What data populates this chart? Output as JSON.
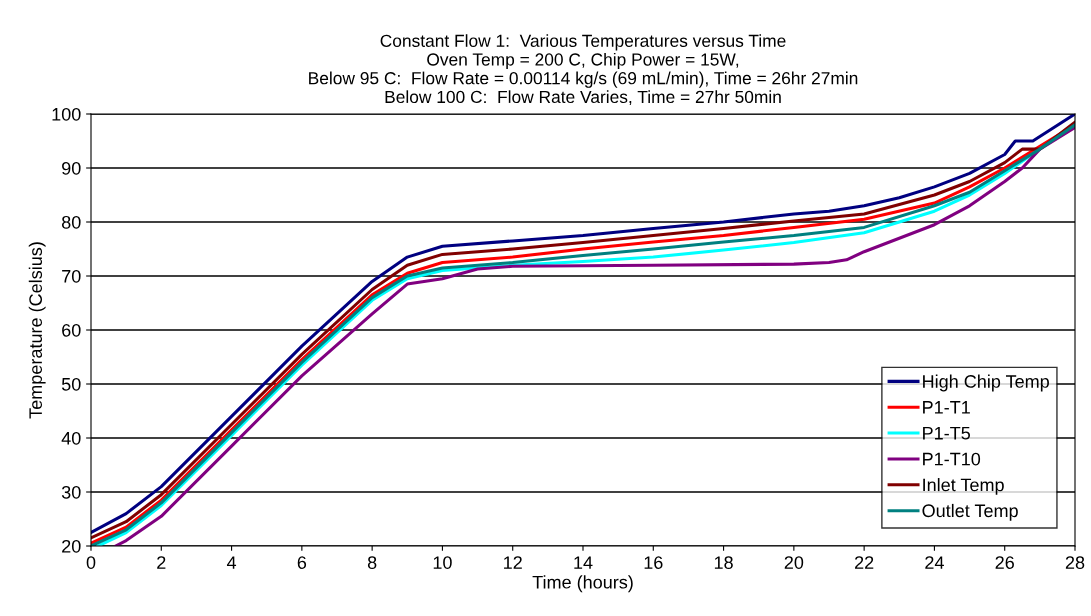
{
  "chart_data": {
    "type": "line",
    "title": "Constant Flow 1:  Various Temperatures versus Time\nOven Temp = 200 C, Chip Power = 15W,\nBelow 95 C:  Flow Rate = 0.00114 kg/s (69 mL/min), Time = 26hr 27min\nBelow 100 C:  Flow Rate Varies, Time = 27hr 50min",
    "xlabel": "Time (hours)",
    "ylabel": "Temperature (Celsius)",
    "xlim": [
      0,
      28
    ],
    "xticks": [
      0,
      2,
      4,
      6,
      8,
      10,
      12,
      14,
      16,
      18,
      20,
      22,
      24,
      26,
      28
    ],
    "ylim": [
      20,
      100
    ],
    "yticks": [
      20,
      30,
      40,
      50,
      60,
      70,
      80,
      90,
      100
    ],
    "grid": "y",
    "legend": "bottom right",
    "marker": "none",
    "line_style": "solid",
    "series": [
      {
        "name": "High Chip Temp",
        "color": "#000080",
        "x": [
          0,
          1,
          2,
          4,
          6,
          8,
          9,
          10,
          12,
          14,
          16,
          18,
          20,
          21,
          22,
          23,
          24,
          25,
          26,
          26.3,
          26.8,
          28
        ],
        "values": [
          22.5,
          26,
          31,
          44,
          57,
          69,
          73.5,
          75.5,
          76.5,
          77.5,
          78.8,
          80,
          81.5,
          82,
          83,
          84.5,
          86.5,
          89,
          92.5,
          95,
          95,
          100
        ]
      },
      {
        "name": "P1-T1",
        "color": "#ff0000",
        "x": [
          0,
          1,
          2,
          4,
          6,
          8,
          9,
          10,
          12,
          14,
          16,
          18,
          20,
          22,
          24,
          25,
          26,
          27,
          28
        ],
        "values": [
          20.5,
          23.5,
          28.5,
          41.5,
          54.5,
          66.5,
          70.5,
          72.5,
          73.5,
          75,
          76.3,
          77.5,
          79,
          80.5,
          83.5,
          86.5,
          90,
          94,
          98
        ]
      },
      {
        "name": "P1-T5",
        "color": "#00ffff",
        "x": [
          0.2,
          1,
          2,
          4,
          6,
          8,
          9,
          10,
          12,
          14,
          16,
          18,
          20,
          22,
          24,
          25,
          26,
          27,
          28
        ],
        "values": [
          20,
          22.5,
          27.5,
          40.5,
          53.5,
          65.5,
          69.5,
          71,
          72,
          72.7,
          73.5,
          74.8,
          76.2,
          78,
          82,
          85,
          89,
          93.5,
          98
        ]
      },
      {
        "name": "P1-T10",
        "color": "#800080",
        "x": [
          0.7,
          1,
          2,
          4,
          6,
          8,
          9,
          10,
          11,
          12,
          16,
          20,
          21,
          21.5,
          22,
          23,
          24,
          25,
          26,
          26.5,
          27,
          28
        ],
        "values": [
          20,
          21,
          25.5,
          38.5,
          51.5,
          63,
          68.5,
          69.5,
          71.3,
          71.8,
          72,
          72.2,
          72.5,
          73,
          74.5,
          77,
          79.5,
          83,
          87.5,
          90,
          93.5,
          97.5
        ]
      },
      {
        "name": "Inlet Temp",
        "color": "#800000",
        "x": [
          0,
          1,
          2,
          4,
          6,
          8,
          9,
          10,
          12,
          14,
          16,
          18,
          20,
          22,
          24,
          25,
          26,
          26.5,
          27,
          28
        ],
        "values": [
          21.5,
          24.5,
          29.5,
          42.5,
          55.5,
          67.5,
          72,
          74,
          75,
          76.2,
          77.5,
          78.8,
          80.2,
          81.5,
          85,
          87.5,
          91,
          93.5,
          93.5,
          98.5
        ]
      },
      {
        "name": "Outlet Temp",
        "color": "#008080",
        "x": [
          0,
          1,
          2,
          4,
          6,
          8,
          9,
          10,
          12,
          14,
          16,
          18,
          20,
          22,
          24,
          25,
          26,
          27,
          28
        ],
        "values": [
          20,
          23,
          28,
          41,
          54,
          66,
          70,
          71.5,
          72.5,
          73.8,
          75,
          76.3,
          77.5,
          79,
          83,
          85.5,
          89.5,
          93.5,
          98
        ]
      }
    ]
  }
}
